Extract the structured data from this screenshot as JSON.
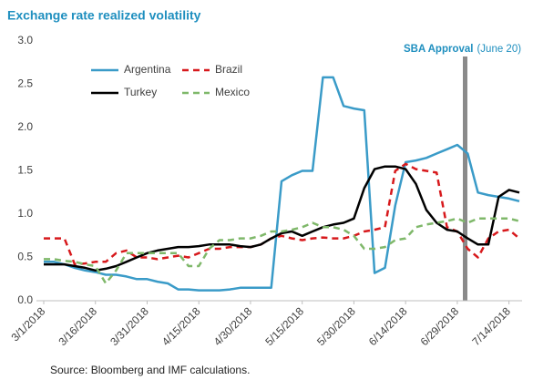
{
  "chart_data": {
    "type": "line",
    "title": "Exchange rate realized volatility",
    "annotation": {
      "label": "SBA Approval",
      "note": "(June 20)"
    },
    "source": "Source: Bloomberg and IMF calculations.",
    "x": [
      "3/1/2018",
      "3/4/2018",
      "3/7/2018",
      "3/10/2018",
      "3/13/2018",
      "3/16/2018",
      "3/19/2018",
      "3/22/2018",
      "3/25/2018",
      "3/28/2018",
      "3/31/2018",
      "4/3/2018",
      "4/6/2018",
      "4/9/2018",
      "4/12/2018",
      "4/15/2018",
      "4/18/2018",
      "4/21/2018",
      "4/24/2018",
      "4/27/2018",
      "4/30/2018",
      "5/3/2018",
      "5/6/2018",
      "5/9/2018",
      "5/12/2018",
      "5/15/2018",
      "5/18/2018",
      "5/21/2018",
      "5/24/2018",
      "5/27/2018",
      "5/30/2018",
      "6/2/2018",
      "6/5/2018",
      "6/8/2018",
      "6/11/2018",
      "6/14/2018",
      "6/17/2018",
      "6/20/2018",
      "6/23/2018",
      "6/26/2018",
      "6/29/2018",
      "7/2/2018",
      "7/5/2018",
      "7/8/2018",
      "7/11/2018",
      "7/14/2018",
      "7/17/2018"
    ],
    "xlim": [
      "3/1/2018",
      "7/17/2018"
    ],
    "xticks": [
      "3/1/2018",
      "3/16/2018",
      "3/31/2018",
      "4/15/2018",
      "4/30/2018",
      "5/15/2018",
      "5/30/2018",
      "6/14/2018",
      "6/29/2018",
      "7/14/2018"
    ],
    "ylim": [
      0,
      3
    ],
    "yticks": [
      {
        "value": 0,
        "label": "0.0"
      },
      0.5,
      {
        "value": 1,
        "label": "1.0"
      },
      1.5,
      {
        "value": 2,
        "label": "2.0"
      },
      2.5,
      {
        "value": 3,
        "label": "3.0"
      }
    ],
    "series": [
      {
        "name": "Argentina",
        "color": "#3a9bc8",
        "dash": false,
        "values": [
          0.45,
          0.45,
          0.42,
          0.38,
          0.35,
          0.33,
          0.3,
          0.3,
          0.28,
          0.25,
          0.25,
          0.22,
          0.2,
          0.13,
          0.13,
          0.12,
          0.12,
          0.12,
          0.13,
          0.15,
          0.15,
          0.15,
          0.15,
          1.38,
          1.45,
          1.5,
          1.5,
          2.58,
          2.58,
          2.25,
          2.22,
          2.2,
          0.32,
          0.38,
          1.1,
          1.6,
          1.62,
          1.65,
          1.7,
          1.75,
          1.8,
          1.7,
          1.25,
          1.22,
          1.2,
          1.18,
          1.15
        ]
      },
      {
        "name": "Brazil",
        "color": "#d7191c",
        "dash": true,
        "values": [
          0.72,
          0.72,
          0.72,
          0.42,
          0.43,
          0.45,
          0.45,
          0.55,
          0.58,
          0.5,
          0.5,
          0.48,
          0.5,
          0.52,
          0.5,
          0.55,
          0.6,
          0.6,
          0.62,
          0.62,
          0.62,
          0.65,
          0.72,
          0.75,
          0.72,
          0.7,
          0.72,
          0.73,
          0.72,
          0.72,
          0.75,
          0.8,
          0.82,
          0.85,
          1.5,
          1.58,
          1.52,
          1.5,
          1.48,
          0.85,
          0.8,
          0.6,
          0.5,
          0.72,
          0.8,
          0.82,
          0.72
        ]
      },
      {
        "name": "Turkey",
        "color": "#000000",
        "dash": false,
        "values": [
          0.42,
          0.42,
          0.42,
          0.4,
          0.38,
          0.35,
          0.37,
          0.4,
          0.45,
          0.5,
          0.55,
          0.58,
          0.6,
          0.62,
          0.62,
          0.63,
          0.65,
          0.65,
          0.65,
          0.63,
          0.62,
          0.65,
          0.72,
          0.78,
          0.8,
          0.75,
          0.8,
          0.85,
          0.88,
          0.9,
          0.95,
          1.3,
          1.52,
          1.55,
          1.55,
          1.52,
          1.35,
          1.05,
          0.9,
          0.82,
          0.8,
          0.72,
          0.65,
          0.65,
          1.2,
          1.28,
          1.25
        ]
      },
      {
        "name": "Mexico",
        "color": "#7fb86a",
        "dash": true,
        "values": [
          0.48,
          0.48,
          0.46,
          0.45,
          0.42,
          0.4,
          0.2,
          0.35,
          0.55,
          0.55,
          0.55,
          0.55,
          0.55,
          0.55,
          0.4,
          0.4,
          0.6,
          0.7,
          0.7,
          0.72,
          0.72,
          0.75,
          0.8,
          0.8,
          0.82,
          0.85,
          0.9,
          0.85,
          0.85,
          0.82,
          0.75,
          0.6,
          0.6,
          0.62,
          0.7,
          0.72,
          0.85,
          0.88,
          0.9,
          0.92,
          0.95,
          0.9,
          0.95,
          0.95,
          0.95,
          0.95,
          0.92
        ]
      }
    ]
  }
}
